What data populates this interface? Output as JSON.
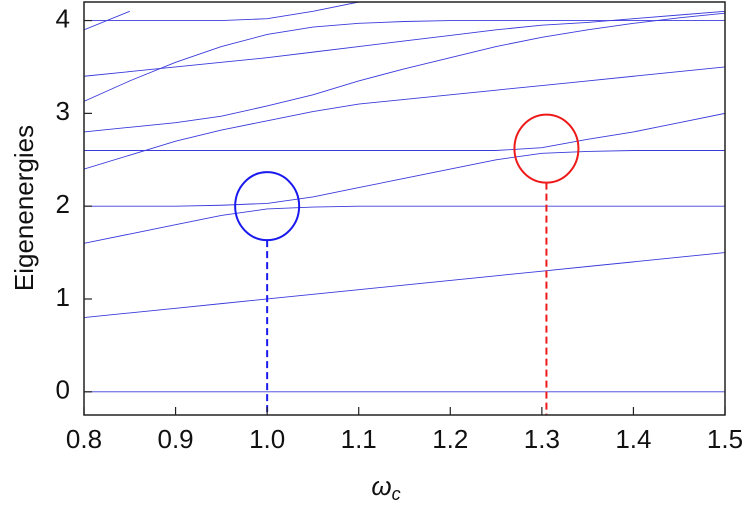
{
  "chart_data": {
    "type": "line",
    "y_label": "Eigenenergies",
    "x_label": {
      "symbol": "ω",
      "subscript": "c"
    },
    "line_color": "#3b3bdc",
    "x": [
      0.8,
      0.85,
      0.9,
      0.95,
      1.0,
      1.05,
      1.1,
      1.15,
      1.2,
      1.25,
      1.3,
      1.35,
      1.4,
      1.45,
      1.5
    ],
    "series": [
      {
        "values": [
          0,
          0,
          0,
          0,
          0,
          0,
          0,
          0,
          0,
          0,
          0,
          0,
          0,
          0,
          0
        ]
      },
      {
        "values": [
          0.8,
          0.85,
          0.9,
          0.95,
          1.0,
          1.05,
          1.1,
          1.15,
          1.2,
          1.25,
          1.3,
          1.35,
          1.4,
          1.45,
          1.5
        ]
      },
      {
        "values": [
          1.6,
          1.7,
          1.8,
          1.9,
          1.97,
          1.99,
          2,
          2,
          2,
          2,
          2,
          2,
          2,
          2,
          2
        ]
      },
      {
        "values": [
          2,
          2,
          2,
          2.01,
          2.03,
          2.1,
          2.2,
          2.3,
          2.4,
          2.5,
          2.57,
          2.59,
          2.6,
          2.6,
          2.6
        ]
      },
      {
        "values": [
          2.6,
          2.6,
          2.6,
          2.6,
          2.6,
          2.6,
          2.6,
          2.6,
          2.6,
          2.6,
          2.63,
          2.72,
          2.8,
          2.9,
          3.0
        ]
      },
      {
        "values": [
          2.4,
          2.55,
          2.7,
          2.82,
          2.92,
          3.02,
          3.1,
          3.15,
          3.2,
          3.25,
          3.3,
          3.35,
          3.4,
          3.45,
          3.5
        ]
      },
      {
        "values": [
          2.8,
          2.85,
          2.9,
          2.97,
          3.08,
          3.2,
          3.35,
          3.48,
          3.6,
          3.72,
          3.82,
          3.9,
          3.97,
          4.03,
          4.08
        ]
      },
      {
        "values": [
          3.13,
          3.35,
          3.55,
          3.72,
          3.85,
          3.93,
          3.97,
          3.99,
          4,
          4,
          4,
          4,
          4,
          4,
          4
        ]
      },
      {
        "values": [
          3.4,
          3.45,
          3.5,
          3.55,
          3.6,
          3.66,
          3.72,
          3.78,
          3.84,
          3.9,
          3.95,
          3.98,
          4.02,
          4.06,
          4.1
        ]
      },
      {
        "values": [
          3.9,
          4.1,
          null,
          null,
          null,
          null,
          null,
          null,
          null,
          null,
          null,
          null,
          null,
          null,
          null
        ]
      },
      {
        "values": [
          4.0,
          4.0,
          4.0,
          4.0,
          4.02,
          4.1,
          4.2,
          null,
          null,
          null,
          null,
          null,
          null,
          null,
          null
        ]
      }
    ],
    "markers": [
      {
        "x": 1.0,
        "y": 2.0,
        "color": "#1a1aee"
      },
      {
        "x": 1.305,
        "y": 2.62,
        "color": "#ee1a1a"
      }
    ],
    "xlim": [
      0.8,
      1.5
    ],
    "ylim": [
      -0.25,
      4.2
    ],
    "xticks": [
      0.8,
      0.9,
      {
        "value": 1,
        "label": "1.0"
      },
      1.1,
      1.2,
      1.3,
      1.4,
      1.5
    ],
    "yticks": [
      0,
      1,
      2,
      3,
      4
    ]
  }
}
